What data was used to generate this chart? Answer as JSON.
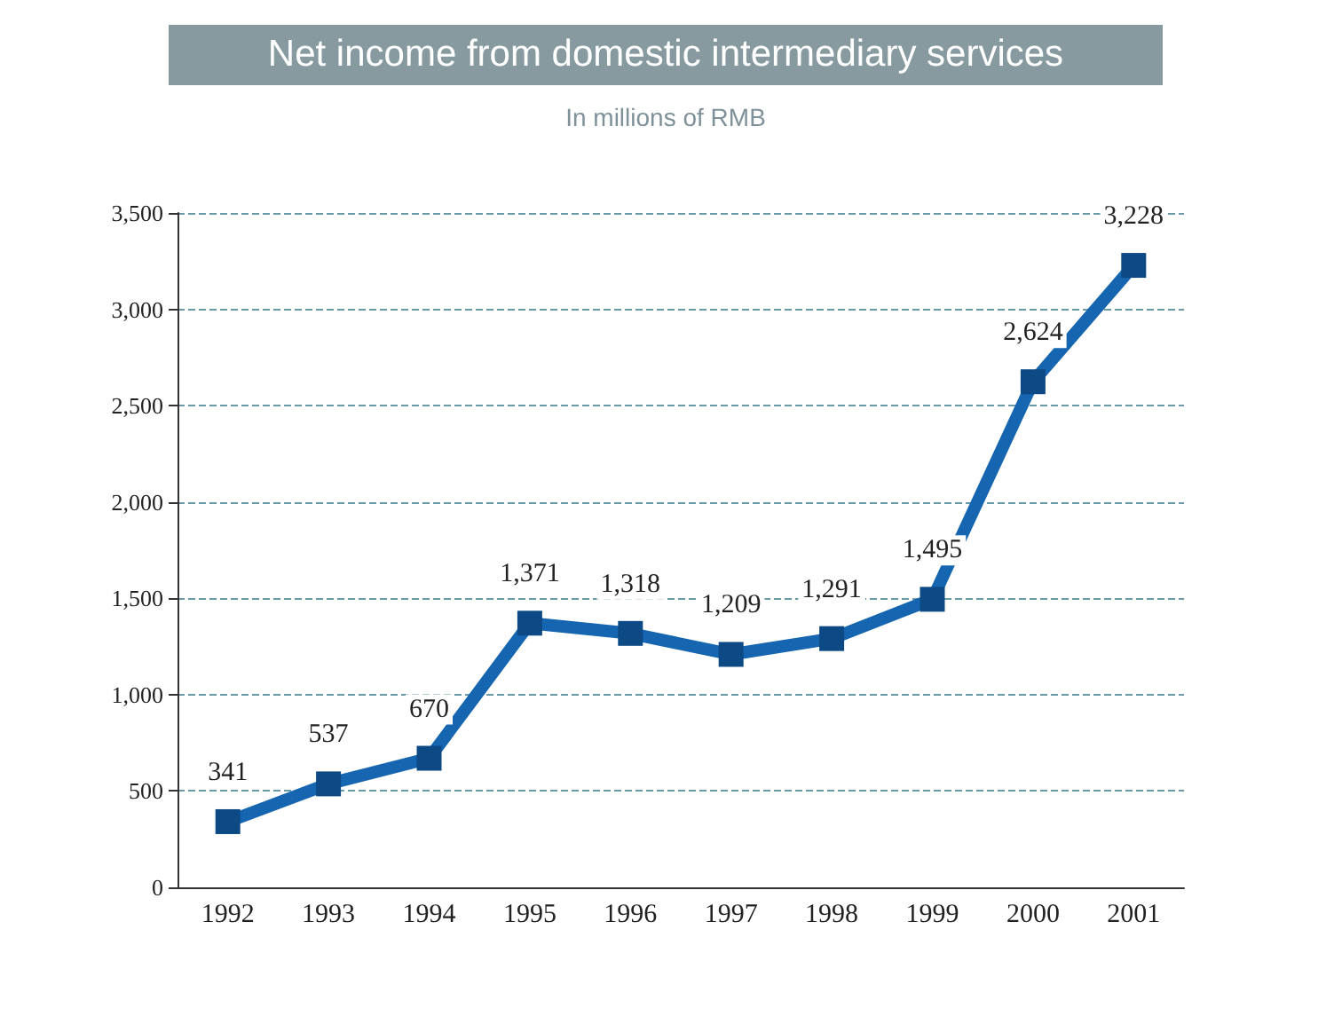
{
  "chart_data": {
    "type": "line",
    "title": "Net income from domestic intermediary services",
    "subtitle": "In millions of RMB",
    "categories": [
      "1992",
      "1993",
      "1994",
      "1995",
      "1996",
      "1997",
      "1998",
      "1999",
      "2000",
      "2001"
    ],
    "series": [
      {
        "color": "#1565b0",
        "values": [
          341,
          537,
          670,
          1371,
          1318,
          1209,
          1291,
          1495,
          2624,
          3228
        ],
        "value_labels": [
          "341",
          "537",
          "670",
          "1,371",
          "1,318",
          "1,209",
          "1,291",
          "1,495",
          "2,624",
          "3,228"
        ]
      }
    ],
    "ylim": [
      0,
      3500
    ],
    "yticks": [
      0,
      500,
      {
        "value": 1000,
        "label": "1,000"
      },
      {
        "value": 1500,
        "label": "1,500"
      },
      {
        "value": 2000,
        "label": "2,000"
      },
      {
        "value": 2500,
        "label": "2,500"
      },
      {
        "value": 3000,
        "label": "3,000"
      },
      {
        "value": 3500,
        "label": "3,500"
      }
    ],
    "grid": "y",
    "marker": "square",
    "line_style": "solid"
  }
}
